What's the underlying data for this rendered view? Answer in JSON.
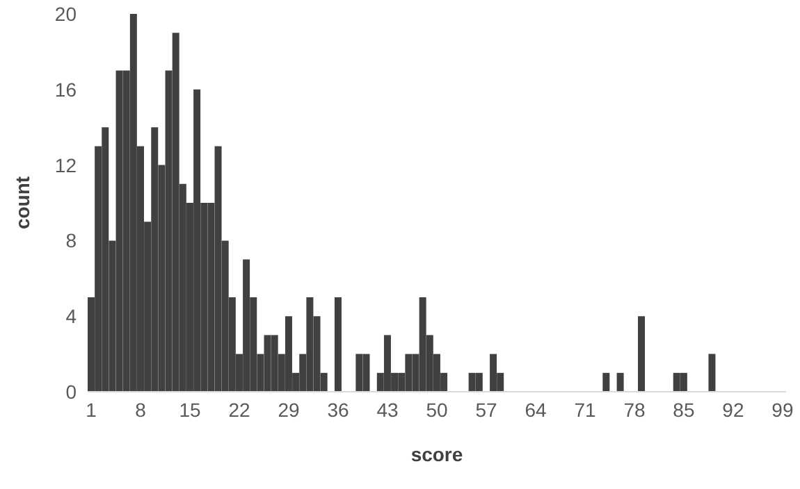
{
  "chart_data": {
    "type": "bar",
    "xlabel": "score",
    "ylabel": "count",
    "categories": [
      "1",
      null,
      null,
      null,
      null,
      null,
      null,
      "8",
      null,
      null,
      null,
      null,
      null,
      null,
      "15",
      null,
      null,
      null,
      null,
      null,
      null,
      "22",
      null,
      null,
      null,
      null,
      null,
      null,
      "29",
      null,
      null,
      null,
      null,
      null,
      null,
      "36",
      null,
      null,
      null,
      null,
      null,
      null,
      "43",
      null,
      null,
      null,
      null,
      null,
      null,
      "50",
      null,
      null,
      null,
      null,
      null,
      null,
      "57",
      null,
      null,
      null,
      null,
      null,
      null,
      "64",
      null,
      null,
      null,
      null,
      null,
      null,
      "71",
      null,
      null,
      null,
      null,
      null,
      null,
      "78",
      null,
      null,
      null,
      null,
      null,
      null,
      "85",
      null,
      null,
      null,
      null,
      null,
      null,
      "92",
      null,
      null,
      null,
      null,
      null,
      null,
      "99"
    ],
    "values": [
      5,
      13,
      14,
      8,
      17,
      17,
      20,
      13,
      9,
      14,
      12,
      17,
      19,
      11,
      10,
      16,
      10,
      10,
      13,
      8,
      5,
      2,
      7,
      5,
      2,
      3,
      3,
      2,
      4,
      1,
      2,
      5,
      4,
      1,
      0,
      5,
      0,
      0,
      2,
      2,
      0,
      1,
      3,
      1,
      1,
      2,
      2,
      5,
      3,
      2,
      1,
      0,
      0,
      0,
      1,
      1,
      0,
      2,
      1,
      0,
      0,
      0,
      0,
      0,
      0,
      0,
      0,
      0,
      0,
      0,
      0,
      0,
      0,
      1,
      0,
      1,
      0,
      0,
      4,
      0,
      0,
      0,
      0,
      1,
      1,
      0,
      0,
      0,
      2,
      0,
      0,
      0,
      0,
      0,
      0,
      0,
      0,
      0,
      0
    ],
    "color": "#404040",
    "ylim": [
      0,
      20
    ],
    "yticks": [
      0,
      4,
      8,
      12,
      16,
      20
    ]
  }
}
